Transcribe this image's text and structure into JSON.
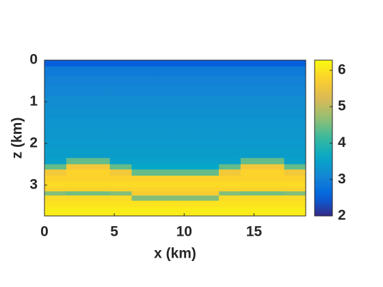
{
  "chart_data": {
    "type": "heatmap",
    "xlabel": "x (km)",
    "ylabel": "z (km)",
    "x": [
      0.78,
      2.34,
      3.9,
      5.46,
      7.02,
      8.58,
      10.14,
      11.7,
      13.26,
      14.82,
      16.38,
      17.94
    ],
    "z": [
      0.05,
      0.25,
      0.5,
      0.75,
      1.0,
      1.25,
      1.5,
      1.75,
      2.0,
      2.25,
      2.45,
      2.55,
      2.7,
      2.85,
      3.0,
      3.1,
      3.2,
      3.3,
      3.45,
      3.6,
      3.7
    ],
    "values": [
      [
        2.5,
        2.5,
        2.5,
        2.5,
        2.5,
        2.5,
        2.5,
        2.5,
        2.5,
        2.5,
        2.5,
        2.5
      ],
      [
        2.9,
        2.9,
        2.9,
        2.9,
        2.9,
        2.9,
        2.9,
        2.9,
        2.9,
        2.9,
        2.9,
        2.9
      ],
      [
        3.0,
        3.0,
        3.0,
        3.0,
        3.0,
        3.0,
        3.0,
        3.0,
        3.0,
        3.0,
        3.0,
        3.0
      ],
      [
        3.1,
        3.1,
        3.1,
        3.1,
        3.1,
        3.1,
        3.1,
        3.1,
        3.1,
        3.1,
        3.1,
        3.1
      ],
      [
        3.2,
        3.2,
        3.2,
        3.2,
        3.2,
        3.2,
        3.2,
        3.2,
        3.2,
        3.2,
        3.2,
        3.2
      ],
      [
        3.25,
        3.25,
        3.25,
        3.25,
        3.25,
        3.25,
        3.25,
        3.25,
        3.25,
        3.25,
        3.25,
        3.25
      ],
      [
        3.3,
        3.3,
        3.3,
        3.3,
        3.3,
        3.3,
        3.3,
        3.3,
        3.3,
        3.3,
        3.3,
        3.3
      ],
      [
        3.35,
        3.35,
        3.35,
        3.35,
        3.35,
        3.35,
        3.35,
        3.35,
        3.35,
        3.35,
        3.35,
        3.35
      ],
      [
        3.4,
        3.4,
        3.4,
        3.4,
        3.4,
        3.4,
        3.4,
        3.4,
        3.4,
        3.4,
        3.4,
        3.4
      ],
      [
        3.45,
        3.45,
        3.45,
        3.45,
        3.45,
        3.45,
        3.45,
        3.45,
        3.45,
        3.45,
        3.45,
        3.45
      ],
      [
        3.5,
        4.4,
        4.4,
        3.5,
        3.5,
        3.5,
        3.5,
        3.5,
        3.5,
        4.4,
        4.4,
        3.5
      ],
      [
        4.4,
        5.6,
        5.6,
        4.4,
        3.6,
        3.6,
        3.6,
        3.6,
        4.4,
        5.6,
        5.6,
        4.4
      ],
      [
        5.6,
        5.8,
        5.8,
        5.6,
        4.4,
        4.4,
        4.4,
        4.4,
        5.6,
        5.8,
        5.8,
        5.6
      ],
      [
        5.8,
        5.8,
        5.8,
        5.8,
        5.8,
        5.8,
        5.8,
        5.8,
        5.8,
        5.8,
        5.8,
        5.8
      ],
      [
        5.9,
        5.9,
        5.9,
        5.9,
        5.9,
        5.9,
        5.9,
        5.9,
        5.9,
        5.9,
        5.9,
        5.9
      ],
      [
        5.8,
        5.8,
        5.8,
        5.8,
        5.8,
        5.8,
        5.8,
        5.8,
        5.8,
        5.8,
        5.8,
        5.8
      ],
      [
        4.6,
        4.5,
        4.5,
        4.6,
        5.7,
        5.7,
        5.7,
        5.7,
        4.6,
        4.5,
        4.5,
        4.6
      ],
      [
        5.9,
        5.9,
        5.9,
        5.9,
        4.6,
        4.6,
        4.6,
        4.6,
        5.9,
        5.9,
        5.9,
        5.9
      ],
      [
        6.0,
        6.0,
        6.0,
        6.0,
        6.0,
        6.0,
        6.0,
        6.0,
        6.0,
        6.0,
        6.0,
        6.0
      ],
      [
        6.1,
        6.1,
        6.1,
        6.1,
        6.1,
        6.1,
        6.1,
        6.1,
        6.1,
        6.1,
        6.1,
        6.1
      ],
      [
        6.1,
        6.1,
        6.1,
        6.1,
        6.1,
        6.1,
        6.1,
        6.1,
        6.1,
        6.1,
        6.1,
        6.1
      ]
    ],
    "xlim": [
      0,
      18.7
    ],
    "xticks": [
      0,
      5,
      10,
      15
    ],
    "ylim": [
      0,
      3.74
    ],
    "yticks": [
      0,
      1,
      2,
      3
    ],
    "y_reversed": true,
    "clim": [
      2,
      6.28
    ],
    "cticks": [
      2,
      3,
      4,
      5,
      6
    ],
    "colormap": "parula"
  }
}
